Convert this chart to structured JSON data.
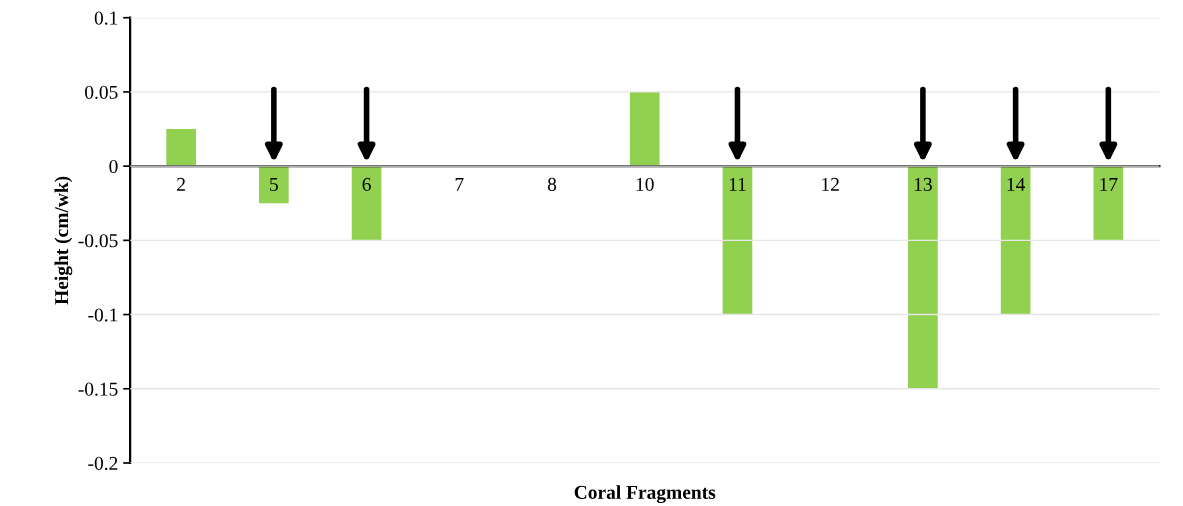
{
  "chart_data": {
    "type": "bar",
    "xlabel": "Coral Fragments",
    "ylabel": "Height (cm/wk)",
    "categories": [
      "2",
      "5",
      "6",
      "7",
      "8",
      "10",
      "11",
      "12",
      "13",
      "14",
      "17"
    ],
    "values": [
      0.025,
      -0.025,
      -0.05,
      0,
      0,
      0.05,
      -0.1,
      0,
      -0.15,
      -0.1,
      -0.05
    ],
    "color": "#92d050",
    "ylim": [
      -0.2,
      0.1
    ],
    "yticks": [
      -0.2,
      -0.15,
      -0.1,
      -0.05,
      0,
      0.05,
      0.1
    ],
    "grid": "y"
  }
}
